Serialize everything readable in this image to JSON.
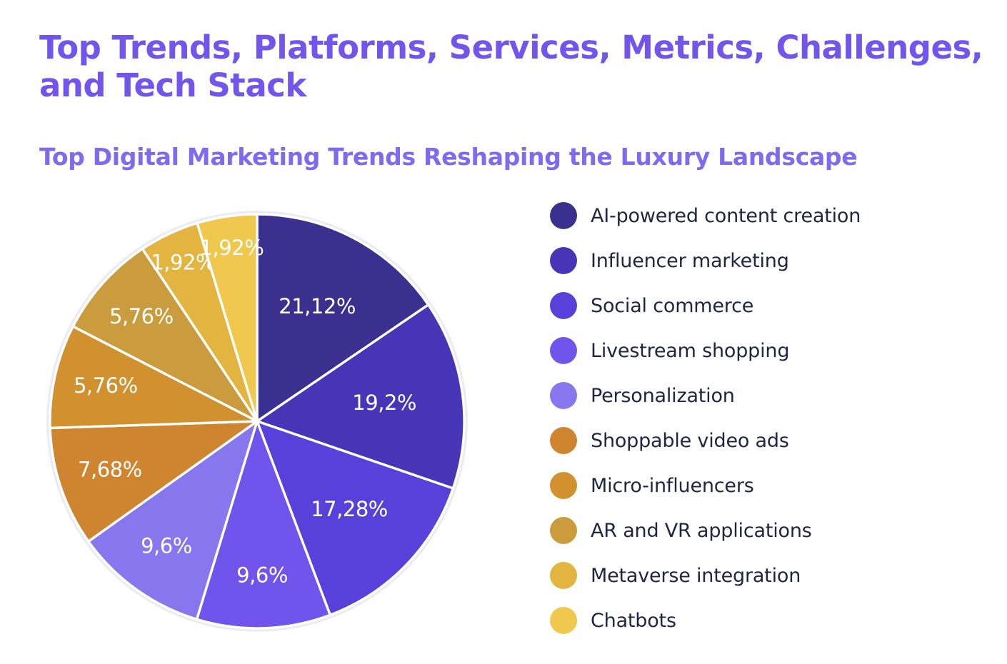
{
  "header": {
    "title_line1": "Top Trends, Platforms, Services, Metrics, Challenges,",
    "title_line2": "and Tech Stack",
    "subtitle": "Top Digital Marketing Trends Reshaping the Luxury Landscape"
  },
  "chart_data": {
    "type": "pie",
    "title": "Top Digital Marketing Trends Reshaping the Luxury Landscape",
    "categories": [
      "AI-powered content creation",
      "Influencer marketing",
      "Social commerce",
      "Livestream shopping",
      "Personalization",
      "Shoppable video ads",
      "Micro-influencers",
      "AR and VR applications",
      "Metaverse integration",
      "Chatbots"
    ],
    "values": [
      21.12,
      19.2,
      17.28,
      9.6,
      9.6,
      7.68,
      5.76,
      5.76,
      1.92,
      1.92
    ],
    "value_labels": [
      "21,12%",
      "19,2%",
      "17,28%",
      "9,6%",
      "9,6%",
      "7,68%",
      "5,76%",
      "5,76%",
      "1,92%",
      "1,92%"
    ],
    "colors": [
      "#39308F",
      "#4635B6",
      "#5841DA",
      "#7154EB",
      "#8677EF",
      "#CF8430",
      "#D0912E",
      "#CB9C3E",
      "#E4B441",
      "#F1C84E"
    ],
    "legend_position": "right",
    "start_angle_deg": 0,
    "direction": "clockwise",
    "angle_weighting": "sqrt",
    "slice_divider_color": "#FFFFFF",
    "label_color": "#FFFFFF"
  }
}
